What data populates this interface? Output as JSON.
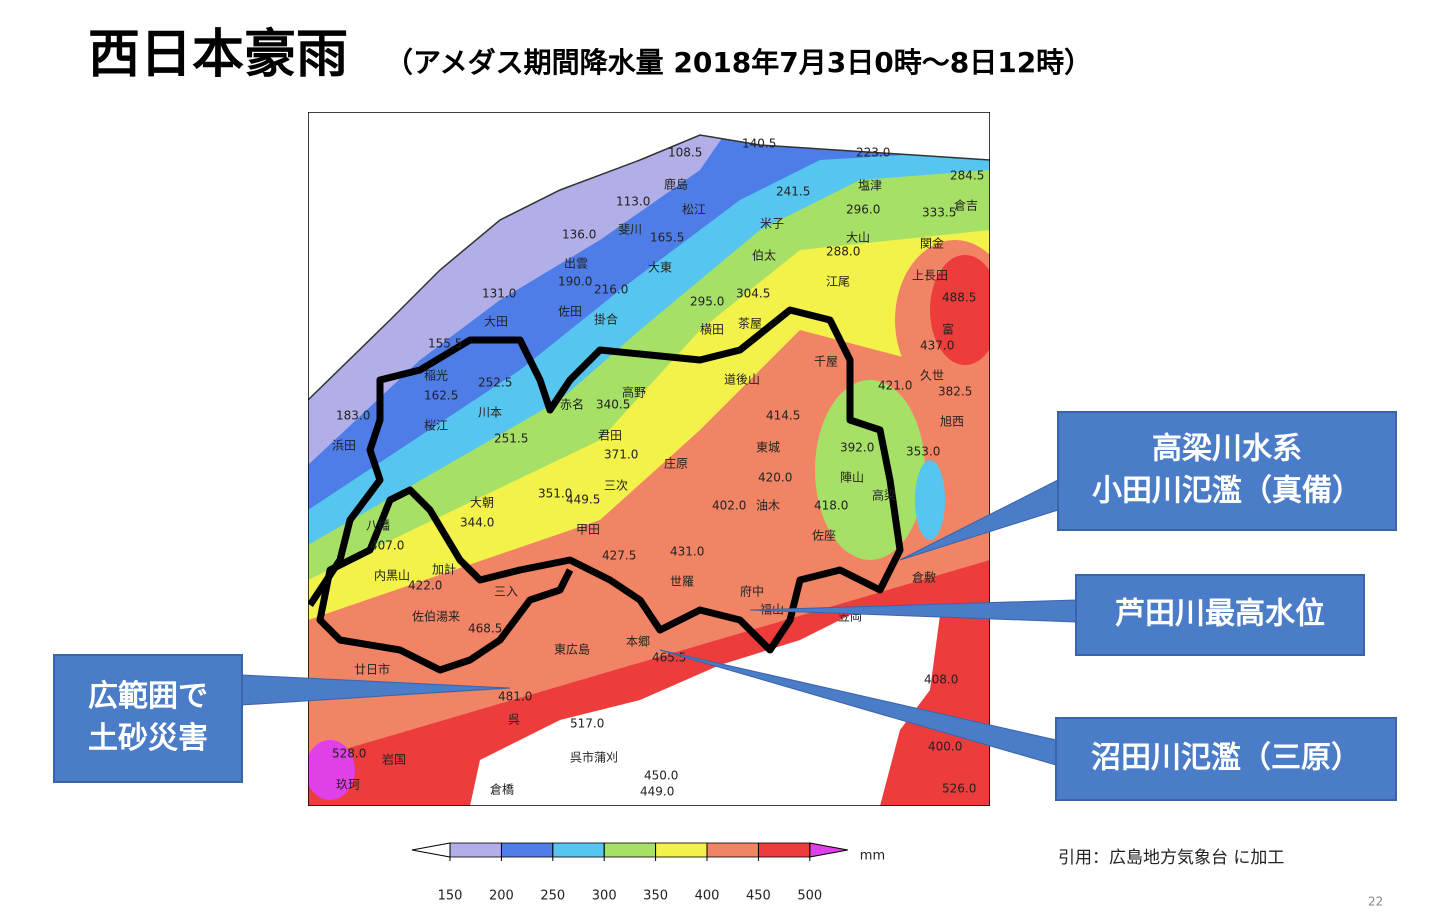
{
  "header": {
    "title": "西日本豪雨",
    "subtitle": "（アメダス期間降水量 2018年7月3日0時～8日12時）"
  },
  "callouts": [
    {
      "lines": [
        "高梁川水系",
        "小田川氾濫（真備）"
      ]
    },
    {
      "lines": [
        "芦田川最高水位"
      ]
    },
    {
      "lines": [
        "沼田川氾濫（三原）"
      ]
    },
    {
      "lines": [
        "広範囲で",
        "土砂災害"
      ]
    }
  ],
  "map": {
    "labels": [
      "108.5",
      "140.5",
      "223.0",
      "284.5",
      "鹿島",
      "松江",
      "113.0",
      "241.5",
      "塩津",
      "296.0",
      "333.5",
      "倉吉",
      "136.0",
      "斐川",
      "165.5",
      "米子",
      "大山",
      "288.0",
      "関金",
      "出雲",
      "190.0",
      "216.0",
      "大東",
      "伯太",
      "江尾",
      "上長田",
      "131.0",
      "佐田",
      "掛合",
      "295.0",
      "304.5",
      "488.5",
      "大田",
      "横田",
      "茶屋",
      "富",
      "437.0",
      "155.5",
      "稲光",
      "162.5",
      "252.5",
      "道後山",
      "千屋",
      "久世",
      "421.0",
      "382.5",
      "183.0",
      "桜江",
      "川本",
      "赤名",
      "340.5",
      "高野",
      "414.5",
      "旭西",
      "浜田",
      "251.5",
      "君田",
      "371.0",
      "東城",
      "392.0",
      "353.0",
      "庄原",
      "三次",
      "420.0",
      "陣山",
      "高梁",
      "八幡",
      "大朝",
      "351.0",
      "449.5",
      "402.0",
      "油木",
      "418.0",
      "407.0",
      "344.0",
      "甲田",
      "427.5",
      "431.0",
      "佐座",
      "倉敷",
      "内黒山",
      "加計",
      "422.0",
      "世羅",
      "府中",
      "佐伯湯来",
      "三入",
      "468.5",
      "福山",
      "東広島",
      "本郷",
      "465.5",
      "廿日市",
      "481.0",
      "408.0",
      "大竹",
      "岩国",
      "528.0",
      "呉",
      "517.0",
      "呉市蒲刈",
      "400.0",
      "玖珂",
      "倉橋",
      "450.0",
      "449.0",
      "526.0",
      "笠岡"
    ]
  },
  "colorbar": {
    "ticks": [
      150,
      200,
      250,
      300,
      350,
      400,
      450,
      500
    ],
    "colors": [
      "#b2aee8",
      "#4f7de8",
      "#56c6f0",
      "#a6e066",
      "#f2f24a",
      "#f28466",
      "#ec3c3c"
    ],
    "unit": "mm"
  },
  "source": "引用：広島地方気象台 に加工",
  "page_number": "22"
}
